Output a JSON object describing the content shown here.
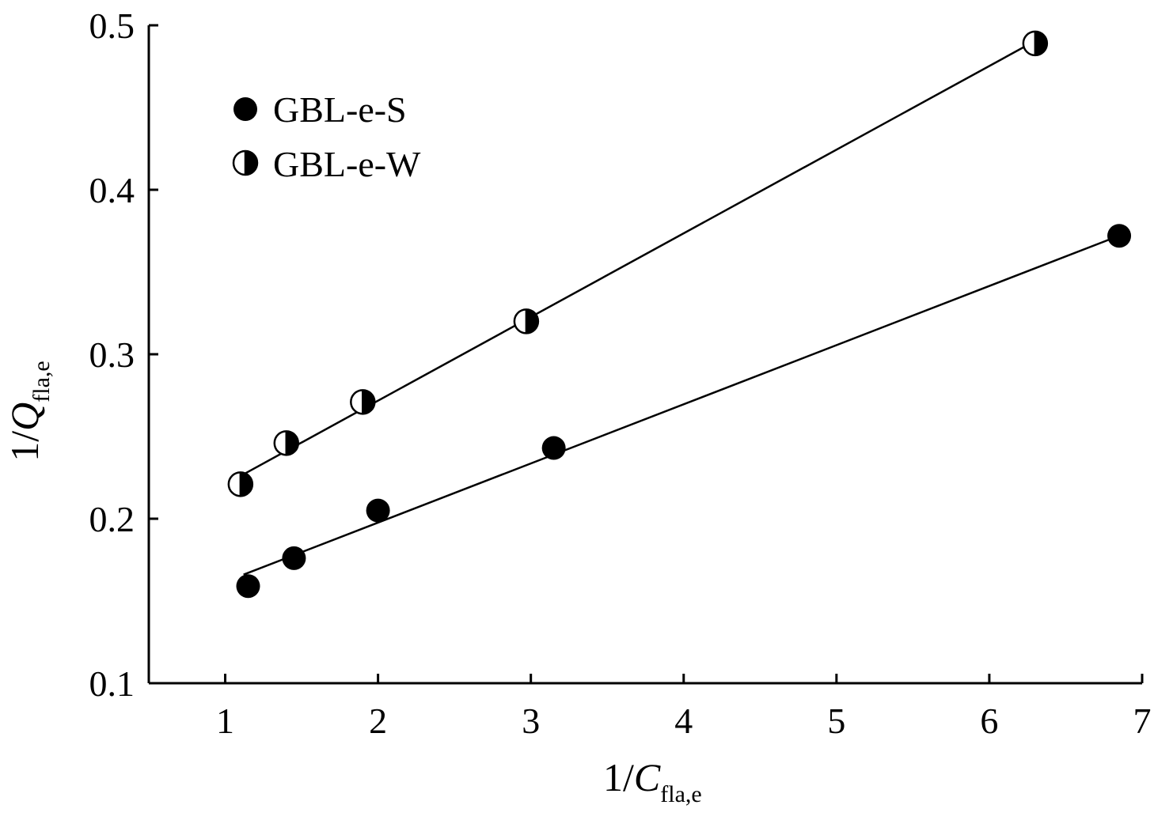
{
  "chart_data": {
    "type": "scatter",
    "xlabel": {
      "prefix": "1/",
      "var": "C",
      "sub": "fla,e"
    },
    "ylabel": {
      "prefix": "1/",
      "var": "Q",
      "sub": "fla,e"
    },
    "xlim": [
      0.5,
      7
    ],
    "ylim": [
      0.1,
      0.5
    ],
    "xticks": [
      1,
      2,
      3,
      4,
      5,
      6,
      7
    ],
    "yticks": [
      0.1,
      0.2,
      0.3,
      0.4,
      0.5
    ],
    "xtick_labels": [
      "1",
      "2",
      "3",
      "4",
      "5",
      "6",
      "7"
    ],
    "ytick_labels": [
      "0.1",
      "0.2",
      "0.3",
      "0.4",
      "0.5"
    ],
    "grid": false,
    "legend_position": "top-left",
    "series": [
      {
        "name": "GBL-e-S",
        "marker": "filled-circle",
        "color": "#000000",
        "x": [
          1.15,
          1.45,
          2.0,
          3.15,
          6.85
        ],
        "y": [
          0.159,
          0.176,
          0.205,
          0.243,
          0.372
        ],
        "fit": {
          "x": [
            1.12,
            6.82
          ],
          "y": [
            0.166,
            0.371
          ]
        }
      },
      {
        "name": "GBL-e-W",
        "marker": "half-filled-circle",
        "color": "#000000",
        "x": [
          1.1,
          1.4,
          1.9,
          2.97,
          6.3
        ],
        "y": [
          0.221,
          0.246,
          0.271,
          0.32,
          0.489
        ],
        "fit": {
          "x": [
            1.1,
            6.27
          ],
          "y": [
            0.226,
            0.489
          ]
        }
      }
    ]
  }
}
